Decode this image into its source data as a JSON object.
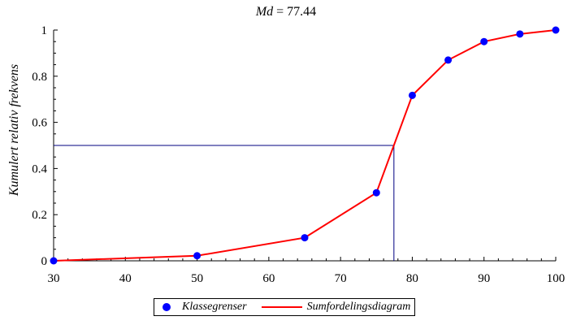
{
  "title": {
    "prefix": "Md",
    "rest": " = 77.44"
  },
  "colors": {
    "points": "#0000ff",
    "line": "#ff0000",
    "median_guide": "#000080"
  },
  "chart_data": {
    "type": "line",
    "x": [
      30,
      50,
      65,
      75,
      80,
      85,
      90,
      95,
      100
    ],
    "series": [
      {
        "name": "Klassegrenser",
        "style": "points",
        "values": [
          0,
          0.022,
          0.1,
          0.295,
          0.717,
          0.87,
          0.95,
          0.983,
          1.0
        ]
      },
      {
        "name": "Sumfordelingsdiagram",
        "style": "line",
        "values": [
          0,
          0.022,
          0.1,
          0.295,
          0.717,
          0.87,
          0.95,
          0.983,
          1.0
        ]
      }
    ],
    "xlim": [
      30,
      100
    ],
    "ylim": [
      0,
      1
    ],
    "xticks": [
      30,
      40,
      50,
      60,
      70,
      80,
      90,
      100
    ],
    "yticks": [
      0,
      0.2,
      0.4,
      0.6,
      0.8,
      1
    ],
    "ytick_labels": [
      "0",
      "0.2",
      "0.4",
      "0.6",
      "0.8",
      "1"
    ],
    "ylabel": "Kumulert relativ frekvens",
    "xlabel": "",
    "median": {
      "x": 77.44,
      "y": 0.5
    },
    "legend_position": "bottom"
  }
}
